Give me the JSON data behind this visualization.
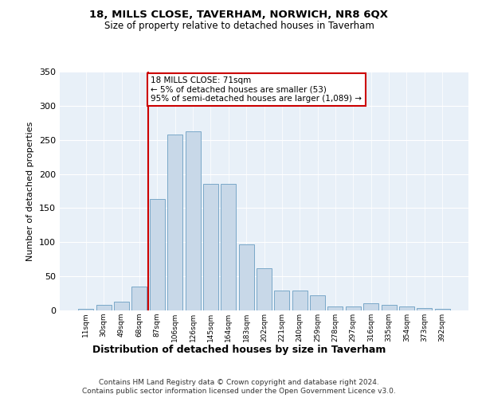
{
  "title1": "18, MILLS CLOSE, TAVERHAM, NORWICH, NR8 6QX",
  "title2": "Size of property relative to detached houses in Taverham",
  "xlabel": "Distribution of detached houses by size in Taverham",
  "ylabel": "Number of detached properties",
  "categories": [
    "11sqm",
    "30sqm",
    "49sqm",
    "68sqm",
    "87sqm",
    "106sqm",
    "126sqm",
    "145sqm",
    "164sqm",
    "183sqm",
    "202sqm",
    "221sqm",
    "240sqm",
    "259sqm",
    "278sqm",
    "297sqm",
    "316sqm",
    "335sqm",
    "354sqm",
    "373sqm",
    "392sqm"
  ],
  "values": [
    2,
    8,
    13,
    35,
    163,
    258,
    262,
    185,
    185,
    97,
    62,
    29,
    29,
    22,
    6,
    6,
    10,
    8,
    6,
    4,
    2
  ],
  "bar_color": "#c8d8e8",
  "bar_edge_color": "#7aa8c8",
  "vline_color": "#cc0000",
  "vline_pos": 3.5,
  "annotation_text": "18 MILLS CLOSE: 71sqm\n← 5% of detached houses are smaller (53)\n95% of semi-detached houses are larger (1,089) →",
  "annotation_box_color": "#ffffff",
  "annotation_box_edge": "#cc0000",
  "ylim": [
    0,
    350
  ],
  "yticks": [
    0,
    50,
    100,
    150,
    200,
    250,
    300,
    350
  ],
  "footer1": "Contains HM Land Registry data © Crown copyright and database right 2024.",
  "footer2": "Contains public sector information licensed under the Open Government Licence v3.0.",
  "plot_bg_color": "#e8f0f8",
  "fig_bg_color": "#ffffff",
  "grid_color": "#ffffff",
  "title1_fontsize": 9.5,
  "title2_fontsize": 8.5,
  "ylabel_fontsize": 8,
  "xlabel_fontsize": 9,
  "xtick_fontsize": 6.5,
  "ytick_fontsize": 8,
  "footer_fontsize": 6.5,
  "ann_fontsize": 7.5
}
